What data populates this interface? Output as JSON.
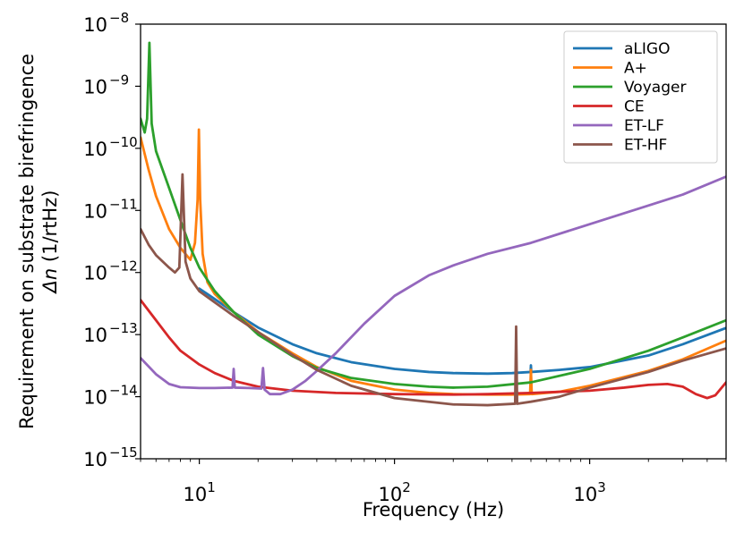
{
  "chart_data": {
    "type": "line",
    "title": "",
    "xlabel": "Frequency (Hz)",
    "ylabel_line1": "Requirement on substrate birefringence",
    "ylabel_line2_symbol": "Δn",
    "ylabel_line2_units": " (1/rtHz)",
    "xscale": "log",
    "yscale": "log",
    "xlim": [
      5,
      5000
    ],
    "ylim": [
      1e-15,
      1e-08
    ],
    "grid": false,
    "legend_position": "top-right",
    "x_ticks": [
      {
        "value": 10,
        "base": "10",
        "exp": "1"
      },
      {
        "value": 100,
        "base": "10",
        "exp": "2"
      },
      {
        "value": 1000,
        "base": "10",
        "exp": "3"
      }
    ],
    "y_ticks": [
      {
        "value": 1e-15,
        "base": "10",
        "exp": "−15"
      },
      {
        "value": 1e-14,
        "base": "10",
        "exp": "−14"
      },
      {
        "value": 1e-13,
        "base": "10",
        "exp": "−13"
      },
      {
        "value": 1e-12,
        "base": "10",
        "exp": "−12"
      },
      {
        "value": 1e-11,
        "base": "10",
        "exp": "−11"
      },
      {
        "value": 1e-10,
        "base": "10",
        "exp": "−10"
      },
      {
        "value": 1e-09,
        "base": "10",
        "exp": "−9"
      },
      {
        "value": 1e-08,
        "base": "10",
        "exp": "−8"
      }
    ],
    "series": [
      {
        "name": "aLIGO",
        "color": "#1f77b4",
        "points": [
          [
            10,
            5.5e-13
          ],
          [
            11,
            4.5e-13
          ],
          [
            15,
            2.3e-13
          ],
          [
            20,
            1.3e-13
          ],
          [
            30,
            7e-14
          ],
          [
            40,
            5e-14
          ],
          [
            60,
            3.6e-14
          ],
          [
            100,
            2.8e-14
          ],
          [
            150,
            2.5e-14
          ],
          [
            200,
            2.4e-14
          ],
          [
            300,
            2.35e-14
          ],
          [
            400,
            2.4e-14
          ],
          [
            500,
            2.5e-14
          ],
          [
            498,
            2.5e-14
          ],
          [
            500,
            3.2e-14
          ],
          [
            502,
            2.5e-14
          ],
          [
            700,
            2.7e-14
          ],
          [
            1000,
            3e-14
          ],
          [
            2000,
            4.6e-14
          ],
          [
            3000,
            7e-14
          ],
          [
            5000,
            1.28e-13
          ]
        ]
      },
      {
        "name": "A+",
        "color": "#ff7f0e",
        "points": [
          [
            5,
            1.5e-10
          ],
          [
            5.5,
            4.5e-11
          ],
          [
            6,
            1.7e-11
          ],
          [
            7,
            5e-12
          ],
          [
            8,
            2.5e-12
          ],
          [
            9,
            1.6e-12
          ],
          [
            9.5,
            3e-12
          ],
          [
            9.8,
            1.5e-11
          ],
          [
            9.95,
            2e-10
          ],
          [
            10.1,
            1.5e-11
          ],
          [
            10.4,
            2e-12
          ],
          [
            11,
            7e-13
          ],
          [
            12,
            4.5e-13
          ],
          [
            15,
            2.3e-13
          ],
          [
            20,
            1.1e-13
          ],
          [
            30,
            5e-14
          ],
          [
            40,
            3e-14
          ],
          [
            60,
            1.8e-14
          ],
          [
            100,
            1.3e-14
          ],
          [
            150,
            1.15e-14
          ],
          [
            200,
            1.1e-14
          ],
          [
            300,
            1.08e-14
          ],
          [
            400,
            1.08e-14
          ],
          [
            495,
            1.1e-14
          ],
          [
            500,
            2.7e-14
          ],
          [
            505,
            1.1e-14
          ],
          [
            700,
            1.2e-14
          ],
          [
            1000,
            1.5e-14
          ],
          [
            2000,
            2.6e-14
          ],
          [
            3000,
            4e-14
          ],
          [
            5000,
            8e-14
          ]
        ]
      },
      {
        "name": "Voyager",
        "color": "#2ca02c",
        "points": [
          [
            5,
            3e-10
          ],
          [
            5.25,
            1.8e-10
          ],
          [
            5.4,
            3e-10
          ],
          [
            5.55,
            5e-09
          ],
          [
            5.7,
            2.5e-10
          ],
          [
            6,
            9e-11
          ],
          [
            7,
            2.3e-11
          ],
          [
            8,
            7e-12
          ],
          [
            9,
            2.5e-12
          ],
          [
            10,
            1.2e-12
          ],
          [
            12,
            5e-13
          ],
          [
            15,
            2.3e-13
          ],
          [
            20,
            1e-13
          ],
          [
            30,
            4.5e-14
          ],
          [
            40,
            2.9e-14
          ],
          [
            60,
            2e-14
          ],
          [
            100,
            1.6e-14
          ],
          [
            150,
            1.45e-14
          ],
          [
            200,
            1.4e-14
          ],
          [
            300,
            1.45e-14
          ],
          [
            500,
            1.7e-14
          ],
          [
            1000,
            2.8e-14
          ],
          [
            2000,
            5.5e-14
          ],
          [
            3000,
            9e-14
          ],
          [
            5000,
            1.7e-13
          ]
        ]
      },
      {
        "name": "CE",
        "color": "#d62728",
        "points": [
          [
            5,
            3.6e-13
          ],
          [
            6,
            1.7e-13
          ],
          [
            7,
            9e-14
          ],
          [
            8,
            5.5e-14
          ],
          [
            10,
            3.3e-14
          ],
          [
            12,
            2.4e-14
          ],
          [
            15,
            1.8e-14
          ],
          [
            20,
            1.45e-14
          ],
          [
            30,
            1.25e-14
          ],
          [
            50,
            1.15e-14
          ],
          [
            100,
            1.1e-14
          ],
          [
            200,
            1.08e-14
          ],
          [
            300,
            1.1e-14
          ],
          [
            500,
            1.15e-14
          ],
          [
            1000,
            1.25e-14
          ],
          [
            1500,
            1.4e-14
          ],
          [
            2000,
            1.55e-14
          ],
          [
            2500,
            1.6e-14
          ],
          [
            3000,
            1.45e-14
          ],
          [
            3500,
            1.1e-14
          ],
          [
            4000,
            9.5e-15
          ],
          [
            4400,
            1.05e-14
          ],
          [
            5000,
            1.7e-14
          ]
        ]
      },
      {
        "name": "ET-LF",
        "color": "#9467bd",
        "points": [
          [
            5,
            4.2e-14
          ],
          [
            6,
            2.3e-14
          ],
          [
            7,
            1.6e-14
          ],
          [
            8,
            1.42e-14
          ],
          [
            10,
            1.38e-14
          ],
          [
            12,
            1.38e-14
          ],
          [
            14.8,
            1.4e-14
          ],
          [
            15,
            2.8e-14
          ],
          [
            15.2,
            1.4e-14
          ],
          [
            18,
            1.38e-14
          ],
          [
            20.8,
            1.35e-14
          ],
          [
            21.2,
            2.9e-14
          ],
          [
            21.6,
            1.3e-14
          ],
          [
            23,
            1.1e-14
          ],
          [
            26,
            1.1e-14
          ],
          [
            30,
            1.3e-14
          ],
          [
            35,
            1.8e-14
          ],
          [
            40,
            2.6e-14
          ],
          [
            50,
            5e-14
          ],
          [
            70,
            1.5e-13
          ],
          [
            100,
            4.2e-13
          ],
          [
            150,
            9e-13
          ],
          [
            200,
            1.3e-12
          ],
          [
            300,
            2e-12
          ],
          [
            500,
            3e-12
          ],
          [
            1000,
            6e-12
          ],
          [
            2000,
            1.2e-11
          ],
          [
            3000,
            1.8e-11
          ],
          [
            5000,
            3.5e-11
          ]
        ]
      },
      {
        "name": "ET-HF",
        "color": "#8c564b",
        "points": [
          [
            5,
            5e-12
          ],
          [
            5.5,
            2.8e-12
          ],
          [
            6,
            1.9e-12
          ],
          [
            7,
            1.2e-12
          ],
          [
            7.5,
            1e-12
          ],
          [
            7.9,
            1.2e-12
          ],
          [
            8.2,
            3.8e-11
          ],
          [
            8.5,
            1.5e-12
          ],
          [
            9,
            8e-13
          ],
          [
            10,
            5e-13
          ],
          [
            12,
            3.3e-13
          ],
          [
            15,
            2e-13
          ],
          [
            20,
            1.1e-13
          ],
          [
            30,
            4.7e-14
          ],
          [
            40,
            2.7e-14
          ],
          [
            60,
            1.5e-14
          ],
          [
            100,
            9.5e-15
          ],
          [
            200,
            7.5e-15
          ],
          [
            300,
            7.3e-15
          ],
          [
            415,
            7.7e-15
          ],
          [
            420,
            1.35e-13
          ],
          [
            425,
            7.7e-15
          ],
          [
            500,
            8.3e-15
          ],
          [
            700,
            1e-14
          ],
          [
            1000,
            1.4e-14
          ],
          [
            2000,
            2.5e-14
          ],
          [
            3000,
            3.8e-14
          ],
          [
            5000,
            6e-14
          ]
        ]
      }
    ]
  }
}
